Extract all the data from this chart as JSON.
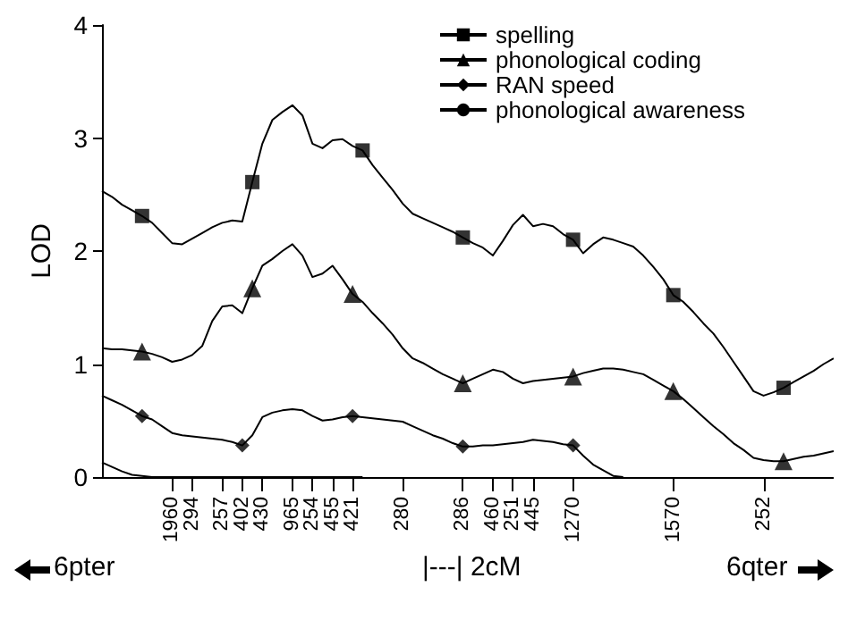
{
  "chart_data": {
    "type": "line",
    "ylabel": "LOD",
    "ylim": [
      0,
      4
    ],
    "yticks": [
      0,
      1,
      2,
      3,
      4
    ],
    "categories": [
      null,
      null,
      null,
      null,
      null,
      null,
      null,
      "1960",
      null,
      "294",
      null,
      null,
      "257",
      null,
      "402",
      null,
      "430",
      null,
      null,
      "965",
      null,
      "254",
      null,
      "455",
      null,
      "421",
      null,
      null,
      null,
      null,
      "280",
      null,
      null,
      null,
      null,
      null,
      "286",
      null,
      null,
      "460",
      null,
      "251",
      null,
      "445",
      null,
      null,
      null,
      "1270",
      null,
      null,
      null,
      null,
      null,
      null,
      null,
      null,
      null,
      "1570",
      null,
      null,
      null,
      null,
      null,
      null,
      null,
      null,
      "252",
      null,
      null,
      null,
      null,
      null,
      null,
      null
    ],
    "grid": false,
    "legend": "top right",
    "line_style": "solid",
    "annotations": [
      "6pter",
      "|---| 2cM",
      "6qter"
    ],
    "series": [
      {
        "name": "spelling",
        "color": "#000000",
        "values": [
          2.53,
          2.48,
          2.41,
          2.36,
          2.31,
          2.25,
          2.16,
          2.07,
          2.06,
          2.11,
          2.16,
          2.21,
          2.25,
          2.27,
          2.26,
          2.61,
          2.95,
          3.16,
          3.23,
          3.29,
          3.2,
          2.95,
          2.91,
          2.98,
          2.99,
          2.93,
          2.89,
          2.76,
          2.65,
          2.54,
          2.42,
          2.33,
          2.29,
          2.25,
          2.21,
          2.17,
          2.12,
          2.07,
          2.03,
          1.96,
          2.09,
          2.23,
          2.32,
          2.22,
          2.24,
          2.22,
          2.15,
          2.1,
          1.98,
          2.06,
          2.12,
          2.1,
          2.07,
          2.04,
          1.96,
          1.86,
          1.75,
          1.61,
          1.55,
          1.46,
          1.36,
          1.27,
          1.15,
          1.02,
          0.89,
          0.76,
          0.72,
          0.75,
          0.79,
          0.84,
          0.89,
          0.94,
          1.0,
          1.05
        ]
      },
      {
        "type": "scatter",
        "color": "#000000",
        "marker": "square",
        "values": [
          null,
          null,
          null,
          null,
          2.31,
          null,
          null,
          null,
          null,
          null,
          null,
          null,
          null,
          null,
          null,
          2.61,
          null,
          null,
          null,
          null,
          null,
          null,
          null,
          null,
          null,
          null,
          2.89,
          null,
          null,
          null,
          null,
          null,
          null,
          null,
          null,
          null,
          2.12,
          null,
          null,
          null,
          null,
          null,
          null,
          null,
          null,
          null,
          null,
          2.1,
          null,
          null,
          null,
          null,
          null,
          null,
          null,
          null,
          null,
          1.61,
          null,
          null,
          null,
          null,
          null,
          null,
          null,
          null,
          null,
          null,
          0.79,
          null,
          null,
          null,
          null,
          null
        ]
      },
      {
        "name": "phonological coding",
        "color": "#000000",
        "values": [
          1.14,
          1.13,
          1.13,
          1.12,
          1.11,
          1.09,
          1.06,
          1.02,
          1.04,
          1.08,
          1.16,
          1.38,
          1.51,
          1.52,
          1.45,
          1.67,
          1.87,
          1.93,
          2.0,
          2.06,
          1.96,
          1.77,
          1.8,
          1.87,
          1.75,
          1.62,
          1.55,
          1.45,
          1.36,
          1.26,
          1.14,
          1.05,
          1.01,
          0.96,
          0.91,
          0.87,
          0.83,
          0.87,
          0.91,
          0.95,
          0.93,
          0.87,
          0.83,
          0.85,
          0.86,
          0.87,
          0.88,
          0.89,
          0.92,
          0.94,
          0.96,
          0.96,
          0.95,
          0.93,
          0.91,
          0.86,
          0.81,
          0.76,
          0.69,
          0.61,
          0.53,
          0.45,
          0.38,
          0.3,
          0.24,
          0.17,
          0.15,
          0.14,
          0.14,
          0.16,
          0.18,
          0.19,
          0.21,
          0.23
        ]
      },
      {
        "type": "scatter",
        "color": "#000000",
        "marker": "triangle",
        "values": [
          null,
          null,
          null,
          null,
          1.11,
          null,
          null,
          null,
          null,
          null,
          null,
          null,
          null,
          null,
          null,
          1.67,
          null,
          null,
          null,
          null,
          null,
          null,
          null,
          null,
          null,
          1.62,
          null,
          null,
          null,
          null,
          null,
          null,
          null,
          null,
          null,
          null,
          0.83,
          null,
          null,
          null,
          null,
          null,
          null,
          null,
          null,
          null,
          null,
          0.89,
          null,
          null,
          null,
          null,
          null,
          null,
          null,
          null,
          null,
          0.76,
          null,
          null,
          null,
          null,
          null,
          null,
          null,
          null,
          null,
          null,
          0.14,
          null,
          null,
          null,
          null,
          null
        ]
      },
      {
        "name": "RAN speed",
        "color": "#000000",
        "values": [
          0.72,
          0.68,
          0.64,
          0.59,
          0.54,
          0.51,
          0.45,
          0.39,
          0.37,
          0.36,
          0.35,
          0.34,
          0.33,
          0.31,
          0.28,
          0.37,
          0.53,
          0.57,
          0.59,
          0.6,
          0.59,
          0.54,
          0.5,
          0.51,
          0.53,
          0.54,
          0.53,
          0.52,
          0.51,
          0.5,
          0.49,
          0.45,
          0.41,
          0.37,
          0.34,
          0.3,
          0.27,
          0.27,
          0.28,
          0.28,
          0.29,
          0.3,
          0.31,
          0.33,
          0.32,
          0.31,
          0.29,
          0.28,
          0.19,
          0.11,
          0.06,
          0.01,
          0,
          null,
          null,
          null,
          null,
          null,
          null,
          null,
          null,
          null,
          null,
          null,
          null,
          null,
          null,
          null,
          null,
          null,
          null,
          null,
          null,
          null
        ]
      },
      {
        "type": "scatter",
        "color": "#000000",
        "marker": "diamond",
        "values": [
          null,
          null,
          null,
          null,
          0.54,
          null,
          null,
          null,
          null,
          null,
          null,
          null,
          null,
          null,
          0.28,
          null,
          null,
          null,
          null,
          null,
          null,
          null,
          null,
          null,
          null,
          0.54,
          null,
          null,
          null,
          null,
          null,
          null,
          null,
          null,
          null,
          null,
          0.27,
          null,
          null,
          null,
          null,
          null,
          null,
          null,
          null,
          null,
          null,
          0.28,
          null,
          null,
          null,
          null,
          null,
          null,
          null,
          null,
          null,
          null,
          null,
          null,
          null,
          null,
          null,
          null,
          null,
          null,
          null,
          null,
          null,
          null,
          null,
          null,
          null,
          null
        ]
      },
      {
        "name": "phonological awareness",
        "color": "#000000",
        "marker": "none",
        "values": [
          0.13,
          0.09,
          0.05,
          0.02,
          0.01,
          0,
          0,
          0,
          0,
          0,
          0,
          0,
          0,
          0,
          0,
          0,
          0,
          0,
          0,
          0,
          0,
          0,
          0,
          0,
          0,
          0,
          0,
          null,
          null,
          null,
          null,
          null,
          null,
          null,
          null,
          null,
          null,
          null,
          null,
          null,
          null,
          null,
          null,
          null,
          null,
          null,
          null,
          null,
          null,
          null,
          null,
          null,
          null,
          null,
          null,
          null,
          null,
          null,
          null,
          null,
          null,
          null,
          null,
          null,
          null,
          null,
          null,
          null,
          null,
          null,
          null,
          null,
          null,
          null
        ]
      }
    ]
  }
}
